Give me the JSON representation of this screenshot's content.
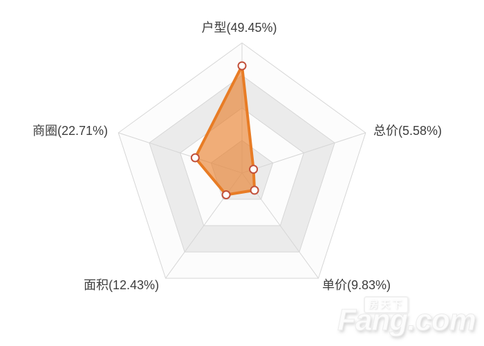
{
  "chart_data": {
    "type": "radar",
    "title": "",
    "shape": "pentagon",
    "axis_order_clockwise_from_top": [
      "户型",
      "总价",
      "单价",
      "面积",
      "商圈"
    ],
    "indicators": [
      {
        "name": "户型",
        "value": 49.45,
        "unit": "%",
        "display": "户型(49.45%)"
      },
      {
        "name": "总价",
        "value": 5.58,
        "unit": "%",
        "display": "总价(5.58%)"
      },
      {
        "name": "单价",
        "value": 9.83,
        "unit": "%",
        "display": "单价(9.83%)"
      },
      {
        "name": "面积",
        "value": 12.43,
        "unit": "%",
        "display": "面积(12.43%)"
      },
      {
        "name": "商圈",
        "value": 22.71,
        "unit": "%",
        "display": "商圈(22.71%)"
      }
    ],
    "max": 60,
    "levels": 4,
    "grid": "pentagon-rings-alternating-bands",
    "legend_position": "none",
    "colors": {
      "series_stroke": "#e87c25",
      "series_fill": "rgba(233,125,38,0.62)",
      "marker_fill": "#ffffff",
      "marker_stroke": "#c2503a",
      "grid_line": "#d6d6d6",
      "band_gray": "#ebebeb",
      "band_light": "#fcfcfc",
      "label_color": "#3d3d3d"
    }
  },
  "watermark": {
    "cn": "房天下",
    "en": "Fang.com"
  }
}
